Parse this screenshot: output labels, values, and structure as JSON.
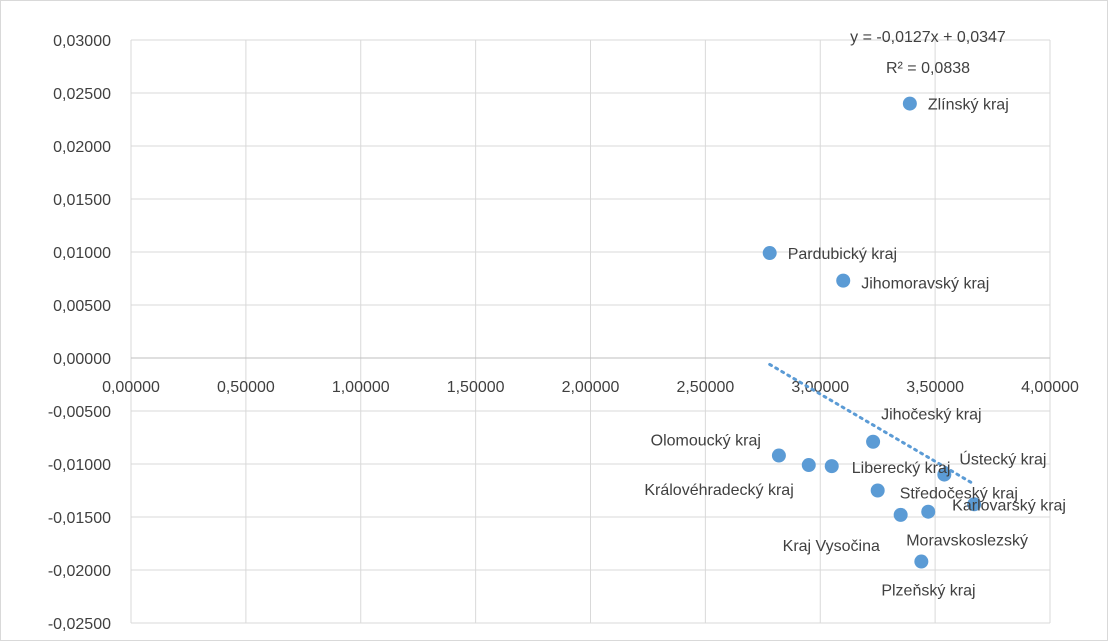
{
  "chart_data": {
    "type": "scatter",
    "title": "",
    "xlabel": "",
    "ylabel": "",
    "xlim": [
      0,
      4
    ],
    "ylim": [
      -0.025,
      0.03
    ],
    "x_ticks": [
      0,
      0.5,
      1,
      1.5,
      2,
      2.5,
      3,
      3.5,
      4
    ],
    "x_tick_labels": [
      "0,00000",
      "0,50000",
      "1,00000",
      "1,50000",
      "2,00000",
      "2,50000",
      "3,00000",
      "3,50000",
      "4,00000"
    ],
    "y_ticks": [
      0.03,
      0.025,
      0.02,
      0.015,
      0.01,
      0.005,
      0,
      -0.005,
      -0.01,
      -0.015,
      -0.02,
      -0.025
    ],
    "y_tick_labels": [
      "0,03000",
      "0,02500",
      "0,02000",
      "0,01500",
      "0,01000",
      "0,00500",
      "0,00000",
      "-0,00500",
      "-0,01000",
      "-0,01500",
      "-0,02000",
      "-0,02500"
    ],
    "grid": true,
    "marker_color": "#5b9bd5",
    "trendline_color": "#5b9bd5",
    "points": [
      {
        "label": "Zlínský kraj",
        "x": 3.39,
        "y": 0.024
      },
      {
        "label": "Pardubický kraj",
        "x": 2.78,
        "y": 0.0099
      },
      {
        "label": "Jihomoravský kraj",
        "x": 3.1,
        "y": 0.0073
      },
      {
        "label": "Jihočeský kraj",
        "x": 3.23,
        "y": -0.0079
      },
      {
        "label": "Olomoucký kraj",
        "x": 2.82,
        "y": -0.0092
      },
      {
        "label": "Královéhradecký kraj",
        "x": 2.95,
        "y": -0.0101
      },
      {
        "label": "Liberecký kraj",
        "x": 3.05,
        "y": -0.0102
      },
      {
        "label": "Ústecký kraj",
        "x": 3.54,
        "y": -0.011
      },
      {
        "label": "Středočeský kraj",
        "x": 3.25,
        "y": -0.0125
      },
      {
        "label": "Karlovarský kraj",
        "x": 3.67,
        "y": -0.0138
      },
      {
        "label": "Moravskoslezský",
        "x": 3.47,
        "y": -0.0145
      },
      {
        "label": "Kraj Vysočina",
        "x": 3.35,
        "y": -0.0148
      },
      {
        "label": "Plzeňský kraj",
        "x": 3.44,
        "y": -0.0192
      }
    ],
    "trendline": {
      "type": "linear",
      "slope": -0.0127,
      "intercept": 0.0347,
      "x_range": [
        2.78,
        3.67
      ],
      "equation": "y = -0,0127x + 0,0347",
      "r_squared": "R² = 0,0838"
    }
  }
}
